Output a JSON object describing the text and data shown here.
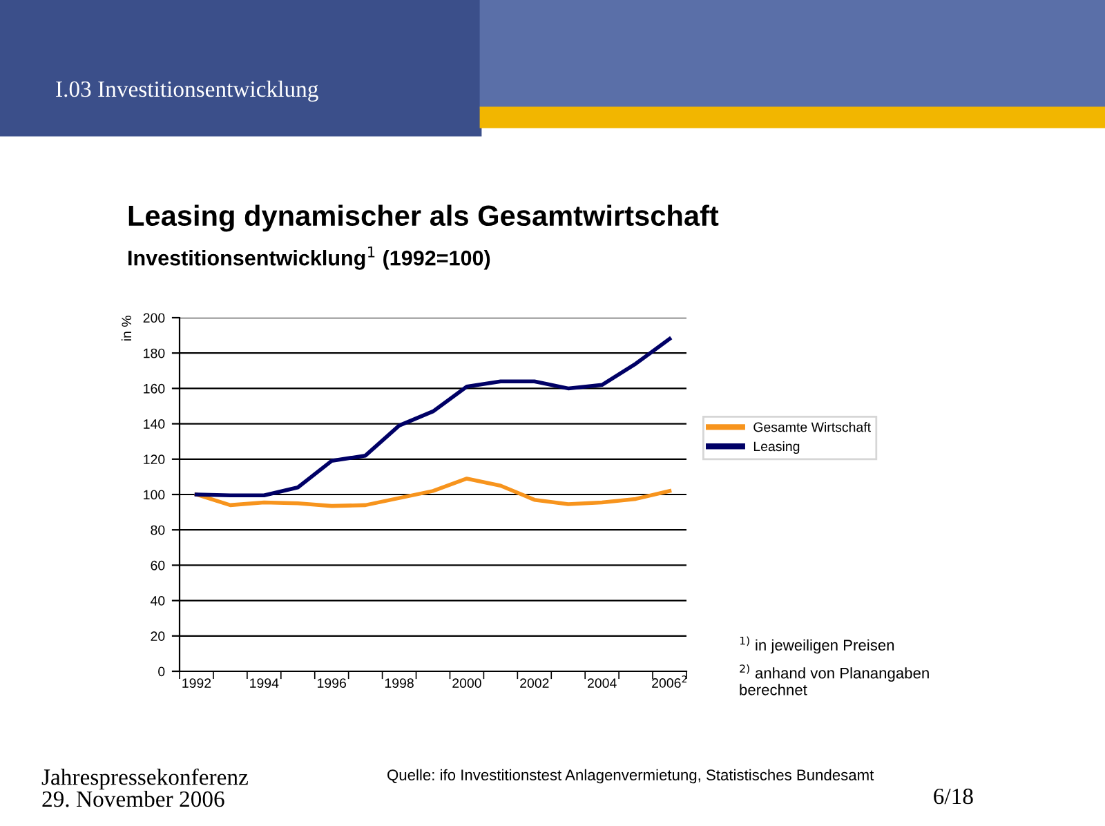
{
  "chart_data": {
    "type": "line",
    "title": "Leasing dynamischer als Gesamtwirtschaft",
    "subtitle": "Investitionsentwicklung$^{1}$ (1992=100)",
    "ylabel": "in %",
    "categories": [
      "1992",
      null,
      "1994",
      null,
      "1996",
      null,
      "1998",
      null,
      "2000",
      null,
      "2002",
      null,
      "2004",
      null,
      "2006$^{2}$"
    ],
    "series": [
      {
        "name": "Gesamte Wirtschaft",
        "color": "#f7941d",
        "values": [
          100,
          94,
          95.5,
          95,
          93.5,
          94,
          98,
          102,
          109,
          105,
          97,
          94.5,
          95.5,
          97.5,
          102
        ]
      },
      {
        "name": "Leasing",
        "color": "#000066",
        "values": [
          100,
          99.5,
          99.5,
          104,
          119,
          122,
          139,
          147,
          161,
          164,
          164,
          160,
          162,
          174,
          188
        ]
      }
    ],
    "ylim": [
      0,
      200
    ],
    "yticks": [
      0,
      20,
      40,
      60,
      80,
      100,
      120,
      140,
      160,
      180,
      200
    ],
    "grid": "y",
    "legend": "right",
    "marker": "none",
    "line_style": "solid",
    "annotations": [
      "I.03 Investitionsentwicklung",
      "$^{1)}$ in jeweiligen Preisen",
      "$^{2)}$ anhand von Planangaben\nberechnet",
      "Jahrespressekonferenz",
      "29. November 2006",
      "Quelle: ifo Investitionstest Anlagenvermietung, Statistisches Bundesamt",
      "6/18"
    ]
  }
}
